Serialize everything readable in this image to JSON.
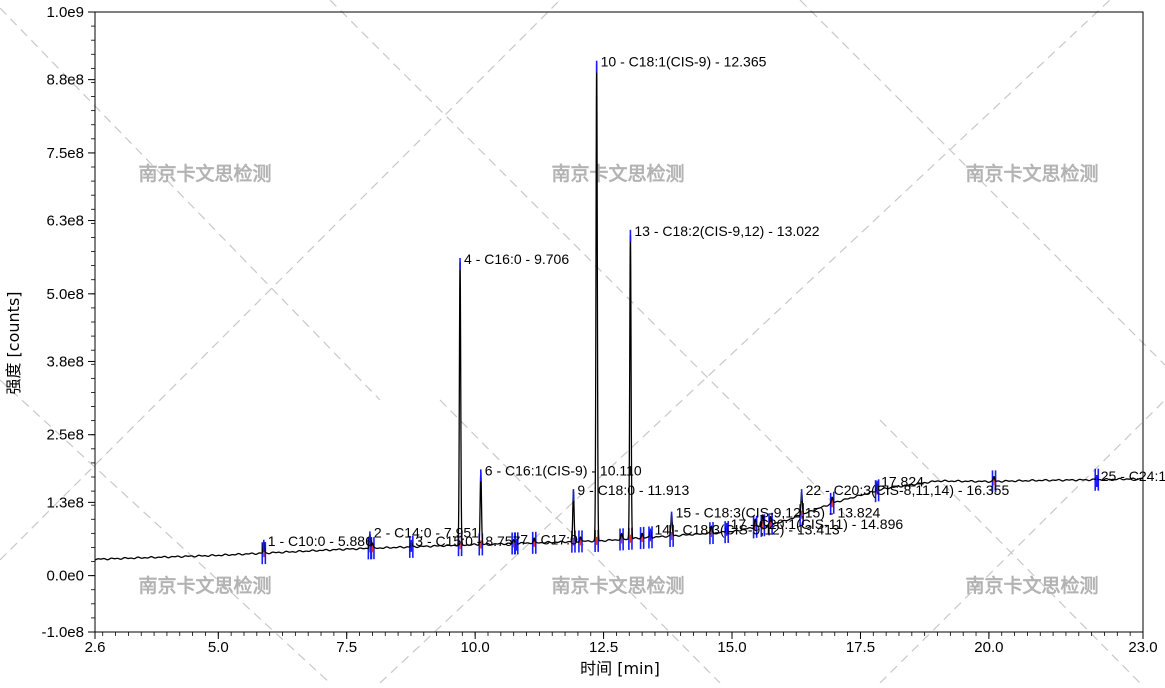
{
  "chart_data": {
    "type": "line",
    "xlabel": "时间 [min]",
    "ylabel": "强度 [counts]",
    "xlim": [
      2.6,
      23.0
    ],
    "ylim": [
      -100000000,
      1000000000
    ],
    "grid": false,
    "x_ticks": [
      "2.6",
      "5.0",
      "7.5",
      "10.0",
      "12.5",
      "15.0",
      "17.5",
      "20.0",
      "23.0"
    ],
    "y_ticks": [
      "1.0e9",
      "8.8e8",
      "7.5e8",
      "6.3e8",
      "5.0e8",
      "3.8e8",
      "2.5e8",
      "1.3e8",
      "0.0e0",
      "-1.0e8"
    ],
    "watermark": "南京卡文思检测",
    "baseline": [
      [
        2.6,
        29000000
      ],
      [
        5.0,
        36000000
      ],
      [
        7.5,
        47000000
      ],
      [
        10.0,
        55000000
      ],
      [
        12.5,
        62000000
      ],
      [
        15.0,
        78000000
      ],
      [
        16.0,
        96000000
      ],
      [
        17.0,
        130000000
      ],
      [
        18.0,
        155000000
      ],
      [
        19.0,
        168000000
      ],
      [
        20.0,
        167000000
      ],
      [
        21.0,
        169000000
      ],
      [
        22.0,
        170000000
      ],
      [
        23.0,
        172000000
      ]
    ],
    "series": [
      {
        "name": "1 - C10:0 - 5.886",
        "x": 5.886,
        "y": 60000000
      },
      {
        "name": "2 - C14:0 - 7.951",
        "x": 7.951,
        "y": 75000000
      },
      {
        "name": "3 - C15:0 - 8.757",
        "x": 8.757,
        "y": 60000000
      },
      {
        "name": "4 - C16:0 - 9.706",
        "x": 9.706,
        "y": 560000000
      },
      {
        "name": "6 - C16:1(CIS-9) - 10.110",
        "x": 10.11,
        "y": 185000000
      },
      {
        "name": "7 - C17:0",
        "x": 10.8,
        "y": 62000000
      },
      {
        "name": "9 - C18:0 - 11.913",
        "x": 11.913,
        "y": 150000000
      },
      {
        "name": "10 - C18:1(CIS-9) - 12.365",
        "x": 12.365,
        "y": 910000000
      },
      {
        "name": "13 - C18:2(CIS-9,12) - 13.022",
        "x": 13.022,
        "y": 610000000
      },
      {
        "name": "14 - C18:3(CIS-9,12) - 13.413",
        "x": 13.413,
        "y": 80000000
      },
      {
        "name": "15 - C18:3(CIS-9,12,15) - 13.824",
        "x": 13.824,
        "y": 110000000
      },
      {
        "name": "17 - C20:1(CIS-11) - 14.896",
        "x": 14.896,
        "y": 90000000
      },
      {
        "name": "22 - C20:3(CIS-8,11,14) - 16.355",
        "x": 16.355,
        "y": 150000000
      },
      {
        "name": "17.824",
        "x": 17.824,
        "y": 165000000
      },
      {
        "name": "25 - C24:1",
        "x": 22.1,
        "y": 175000000
      }
    ]
  }
}
